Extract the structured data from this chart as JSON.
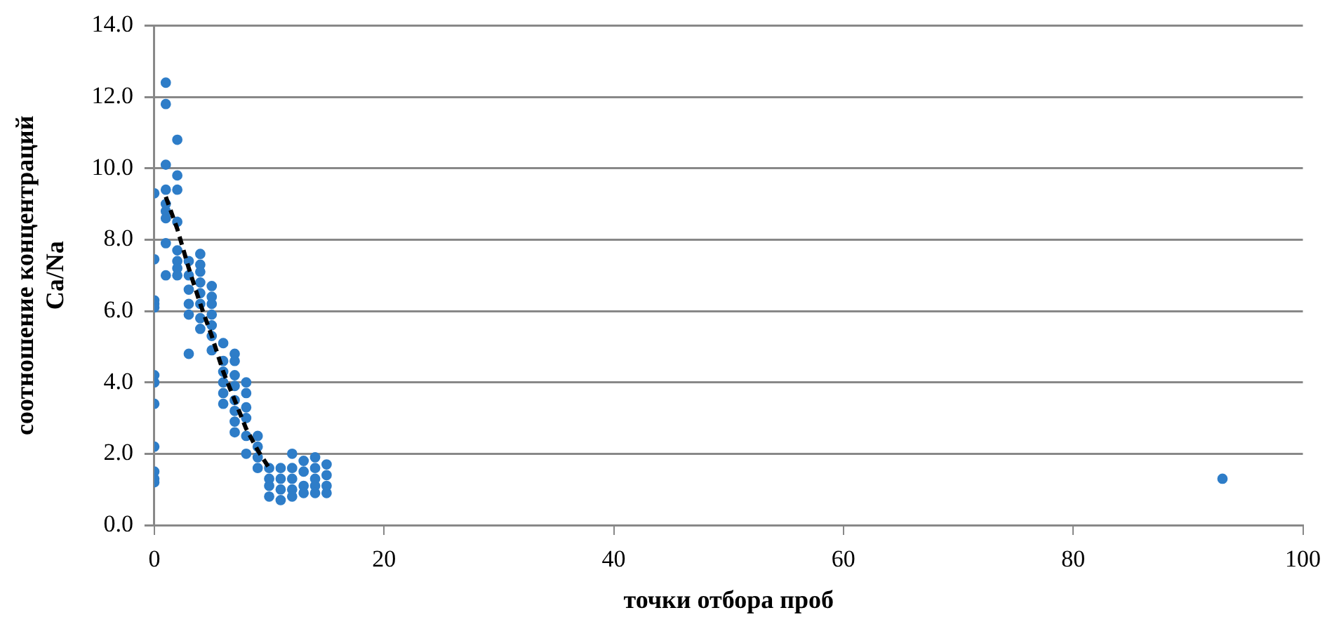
{
  "chart_data": {
    "type": "scatter",
    "xlabel": "точки отбора проб",
    "ylabel": "соотношение концентраций Ca/Na",
    "xlim": [
      0,
      100
    ],
    "xticks": [
      0,
      20,
      40,
      60,
      80,
      100
    ],
    "ylim": [
      0,
      14
    ],
    "yticks": [
      {
        "value": 0,
        "label": "0.0"
      },
      {
        "value": 2,
        "label": "2.0"
      },
      {
        "value": 4,
        "label": "4.0"
      },
      {
        "value": 6,
        "label": "6.0"
      },
      {
        "value": 8,
        "label": "8.0"
      },
      {
        "value": 10,
        "label": "10.0"
      },
      {
        "value": 12,
        "label": "12.0"
      },
      {
        "value": 14,
        "label": "14.0"
      }
    ],
    "grid": "y",
    "legend": false,
    "marker": "circle",
    "series": [
      {
        "color": "#2e7dc8",
        "x": [
          0,
          0,
          0,
          0,
          0,
          0,
          0,
          0,
          0,
          0,
          0,
          0,
          1,
          1,
          1,
          1,
          1,
          1,
          1,
          1,
          1,
          2,
          2,
          2,
          2,
          2,
          2,
          2,
          2,
          3,
          3,
          3,
          3,
          3,
          3,
          4,
          4,
          4,
          4,
          4,
          4,
          4,
          4,
          5,
          5,
          5,
          5,
          5,
          5,
          5,
          6,
          6,
          6,
          6,
          6,
          6,
          7,
          7,
          7,
          7,
          7,
          7,
          7,
          7,
          8,
          8,
          8,
          8,
          8,
          8,
          9,
          9,
          9,
          9,
          10,
          10,
          10,
          10,
          11,
          11,
          11,
          11,
          12,
          12,
          12,
          12,
          12,
          13,
          13,
          13,
          13,
          14,
          14,
          14,
          14,
          14,
          15,
          15,
          15,
          15,
          93
        ],
        "values": [
          9.3,
          7.45,
          6.3,
          6.2,
          6.1,
          4.2,
          4.0,
          3.4,
          2.2,
          1.5,
          1.3,
          1.2,
          12.4,
          11.8,
          10.1,
          9.4,
          9.0,
          8.8,
          8.6,
          7.9,
          7.0,
          10.8,
          9.8,
          9.4,
          8.5,
          7.7,
          7.4,
          7.2,
          7.0,
          7.4,
          7.0,
          6.6,
          6.2,
          5.9,
          4.8,
          7.6,
          7.3,
          7.1,
          6.8,
          6.5,
          6.2,
          5.8,
          5.5,
          6.7,
          6.4,
          6.2,
          5.9,
          5.6,
          5.3,
          4.9,
          5.1,
          4.6,
          4.3,
          4.0,
          3.7,
          3.4,
          4.8,
          4.6,
          4.2,
          3.9,
          3.5,
          3.2,
          2.9,
          2.6,
          4.0,
          3.7,
          3.3,
          3.0,
          2.5,
          2.0,
          2.5,
          2.2,
          1.9,
          1.6,
          1.6,
          1.3,
          1.1,
          0.8,
          1.6,
          1.3,
          1.0,
          0.7,
          2.0,
          1.6,
          1.3,
          1.0,
          0.8,
          1.8,
          1.5,
          1.1,
          0.9,
          1.9,
          1.6,
          1.3,
          1.1,
          0.9,
          1.7,
          1.4,
          1.1,
          0.9,
          1.3
        ]
      },
      {
        "type": "line",
        "color": "#000000",
        "line_style": "dashed",
        "marker": "none",
        "x": [
          1,
          2,
          3,
          4,
          5,
          6,
          7,
          8,
          9,
          10
        ],
        "values": [
          9.2,
          8.3,
          7.2,
          6.2,
          5.3,
          4.3,
          3.5,
          2.7,
          2.1,
          1.6
        ]
      }
    ]
  }
}
